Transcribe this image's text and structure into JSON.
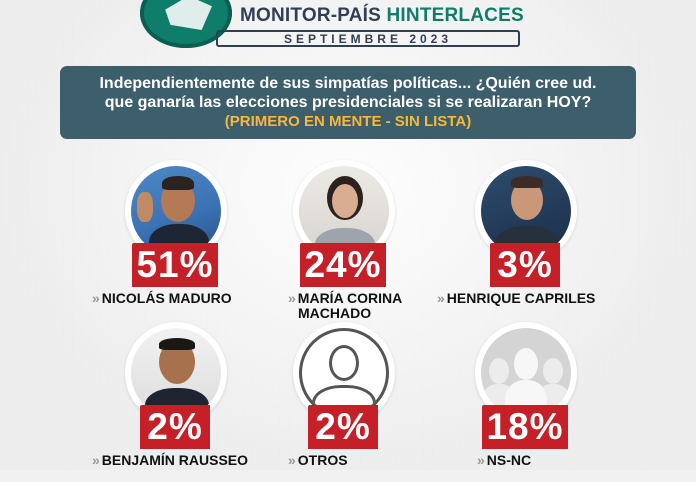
{
  "header": {
    "brand_prefix": "MONITOR-PAÍS ",
    "brand_accent": "HINTERLACES",
    "subtitle": "SEPTIEMBRE 2023"
  },
  "question": {
    "line1": "Independientemente de sus simpatías políticas... ¿Quién cree ud.",
    "line2": "que ganaría las elecciones presidenciales si se realizaran HOY?",
    "note": "(PRIMERO EN MENTE - SIN LISTA)"
  },
  "colors": {
    "accent_red": "#c52027",
    "header_teal": "#0e7d6a",
    "question_bg": "#3d5f6c",
    "note_yellow": "#f5b93c"
  },
  "chart_data": {
    "type": "bar",
    "categories": [
      "NICOLÁS MADURO",
      "MARÍA CORINA MACHADO",
      "HENRIQUE CAPRILES",
      "BENJAMÍN RAUSSEO",
      "OTROS",
      "NS-NC"
    ],
    "values": [
      51,
      24,
      3,
      2,
      2,
      18
    ],
    "labels": [
      "51%",
      "24%",
      "3%",
      "2%",
      "2%",
      "18%"
    ],
    "unit": "%"
  },
  "candidates": [
    {
      "name": "NICOLÁS MADURO",
      "name_line2": "",
      "pct": "51%"
    },
    {
      "name": "MARÍA CORINA",
      "name_line2": "MACHADO",
      "pct": "24%"
    },
    {
      "name": "HENRIQUE CAPRILES",
      "name_line2": "",
      "pct": "3%"
    },
    {
      "name": "BENJAMÍN RAUSSEO",
      "name_line2": "",
      "pct": "2%"
    },
    {
      "name": "OTROS",
      "name_line2": "",
      "pct": "2%"
    },
    {
      "name": "NS-NC",
      "name_line2": "",
      "pct": "18%"
    }
  ],
  "arrow_glyph": "»"
}
